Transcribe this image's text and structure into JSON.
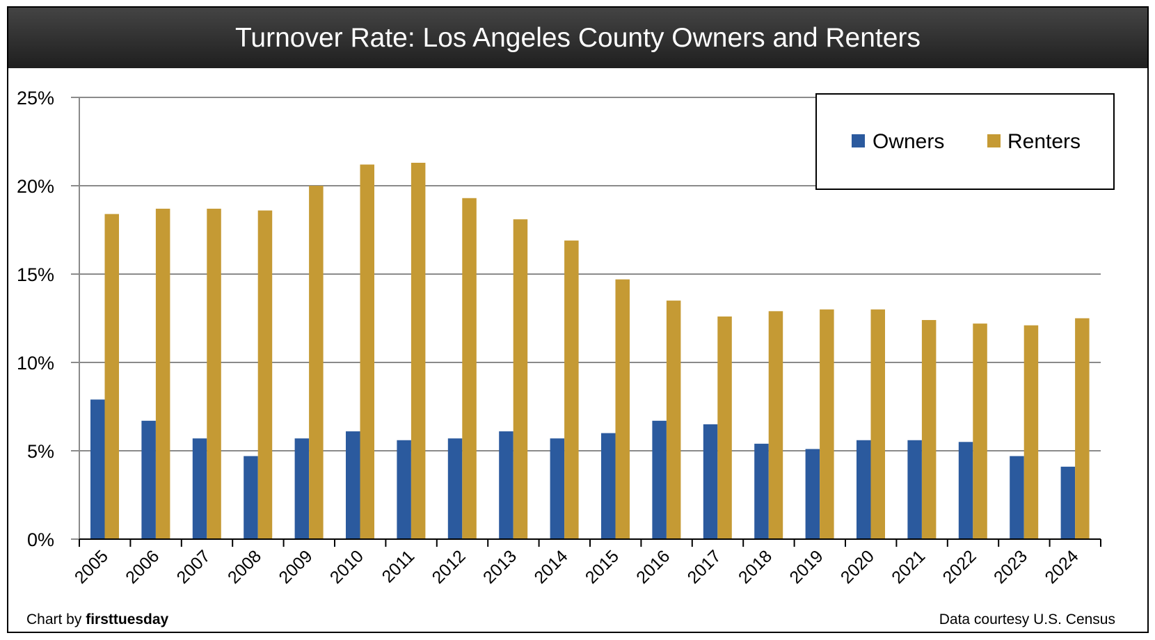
{
  "chart_data": {
    "type": "bar",
    "title": "Turnover Rate: Los Angeles County Owners and Renters",
    "xlabel": "",
    "ylabel": "",
    "ylim": [
      0,
      25
    ],
    "y_ticks": [
      "0%",
      "5%",
      "10%",
      "15%",
      "20%",
      "25%"
    ],
    "y_tick_values": [
      0,
      5,
      10,
      15,
      20,
      25
    ],
    "grid": true,
    "legend_position": "top-right",
    "categories": [
      "2005",
      "2006",
      "2007",
      "2008",
      "2009",
      "2010",
      "2011",
      "2012",
      "2013",
      "2014",
      "2015",
      "2016",
      "2017",
      "2018",
      "2019",
      "2020",
      "2021",
      "2022",
      "2023",
      "2024"
    ],
    "series": [
      {
        "name": "Owners",
        "color": "#2b5a9e",
        "values": [
          7.9,
          6.7,
          5.7,
          4.7,
          5.7,
          6.1,
          5.6,
          5.7,
          6.1,
          5.7,
          6.0,
          6.7,
          6.5,
          5.4,
          5.1,
          5.6,
          5.6,
          5.5,
          4.7,
          4.1
        ]
      },
      {
        "name": "Renters",
        "color": "#c59a34",
        "values": [
          18.4,
          18.7,
          18.7,
          18.6,
          20.0,
          21.2,
          21.3,
          19.3,
          18.1,
          16.9,
          14.7,
          13.5,
          12.6,
          12.9,
          13.0,
          13.0,
          12.4,
          12.2,
          12.1,
          12.5
        ]
      }
    ]
  },
  "footer": {
    "credit_prefix": "Chart by ",
    "credit_brand": "firsttuesday",
    "source": "Data courtesy U.S. Census"
  }
}
